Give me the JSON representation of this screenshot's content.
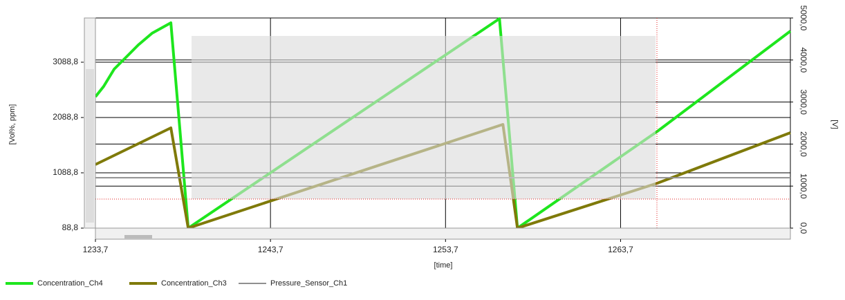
{
  "chart_data": {
    "type": "line",
    "y_label": "[Vol%, ppm]",
    "y2_label": "[V]",
    "x_label": "[time]",
    "xlim": [
      1233.7,
      1273.4
    ],
    "xticks": [
      {
        "value": 1233.7,
        "label": "1233,7"
      },
      {
        "value": 1243.7,
        "label": "1243,7"
      },
      {
        "value": 1253.7,
        "label": "1253,7"
      },
      {
        "value": 1263.7,
        "label": "1263,7"
      }
    ],
    "ylim": [
      88.8,
      3888.8
    ],
    "yticks": [
      {
        "value": 88.8,
        "label": "88,8"
      },
      {
        "value": 1088.8,
        "label": "1088,8"
      },
      {
        "value": 2088.8,
        "label": "2088,8"
      },
      {
        "value": 3088.8,
        "label": "3088,8"
      }
    ],
    "y2lim": [
      0,
      5000
    ],
    "y2ticks": [
      {
        "value": 0,
        "label": "0,0"
      },
      {
        "value": 1000,
        "label": "1000,0"
      },
      {
        "value": 2000,
        "label": "2000,0"
      },
      {
        "value": 3000,
        "label": "3000,0"
      },
      {
        "value": 4000,
        "label": "4000,0"
      },
      {
        "value": 5000,
        "label": "5000,0"
      }
    ],
    "grid": true,
    "legend": "bottom-left",
    "series": [
      {
        "name": "Concentration_Ch4",
        "color": "#1ee61e",
        "x": [
          1233.7,
          1234.17,
          1234.77,
          1235.56,
          1236.15,
          1236.94,
          1238.01,
          1239.0,
          1256.78,
          1257.81,
          1265.8,
          1273.4
        ],
        "values": [
          2463.8,
          2651.3,
          2963.8,
          3213.8,
          3401.3,
          3613.8,
          3801.3,
          88.8,
          3876.3,
          88.8,
          1838.8,
          3651.3
        ]
      },
      {
        "name": "Concentration_Ch3",
        "color": "#7f7a0a",
        "x": [
          1233.7,
          1238.01,
          1239.0,
          1256.98,
          1257.81,
          1265.8,
          1273.4
        ],
        "values": [
          1238.8,
          1901.3,
          88.8,
          1963.8,
          88.8,
          901.3,
          1813.8
        ]
      },
      {
        "name": "Pressure_Sensor_Ch1",
        "color": "#909090",
        "x": [
          1233.7,
          1273.4
        ],
        "values": [
          1000.0,
          1000.0
        ]
      }
    ]
  }
}
